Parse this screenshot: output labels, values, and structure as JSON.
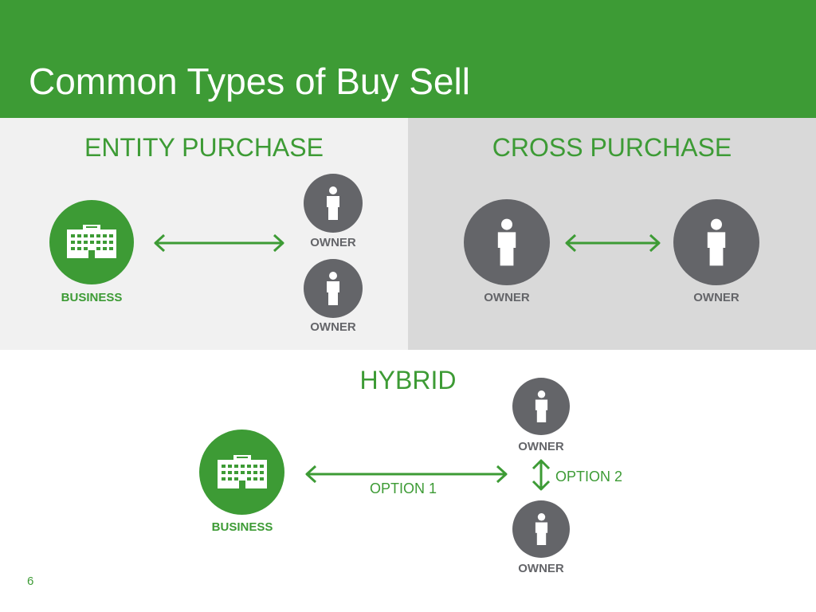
{
  "slide": {
    "title": "Common Types of Buy Sell",
    "page_number": "6",
    "accent_color": "#3d9b35",
    "owner_color": "#646569",
    "left_panel_color": "#f1f1f1",
    "right_panel_color": "#d9d9d9"
  },
  "entity_purchase": {
    "heading": "ENTITY PURCHASE",
    "business": {
      "label": "BUSINESS",
      "icon": "building-icon"
    },
    "owners": [
      {
        "label": "OWNER",
        "icon": "person-icon"
      },
      {
        "label": "OWNER",
        "icon": "person-icon"
      }
    ]
  },
  "cross_purchase": {
    "heading": "CROSS PURCHASE",
    "owners": [
      {
        "label": "OWNER",
        "icon": "person-icon"
      },
      {
        "label": "OWNER",
        "icon": "person-icon"
      }
    ]
  },
  "hybrid": {
    "heading": "HYBRID",
    "business": {
      "label": "BUSINESS",
      "icon": "building-icon"
    },
    "owners": [
      {
        "label": "OWNER",
        "icon": "person-icon"
      },
      {
        "label": "OWNER",
        "icon": "person-icon"
      }
    ],
    "option_1": "OPTION 1",
    "option_2": "OPTION 2"
  }
}
